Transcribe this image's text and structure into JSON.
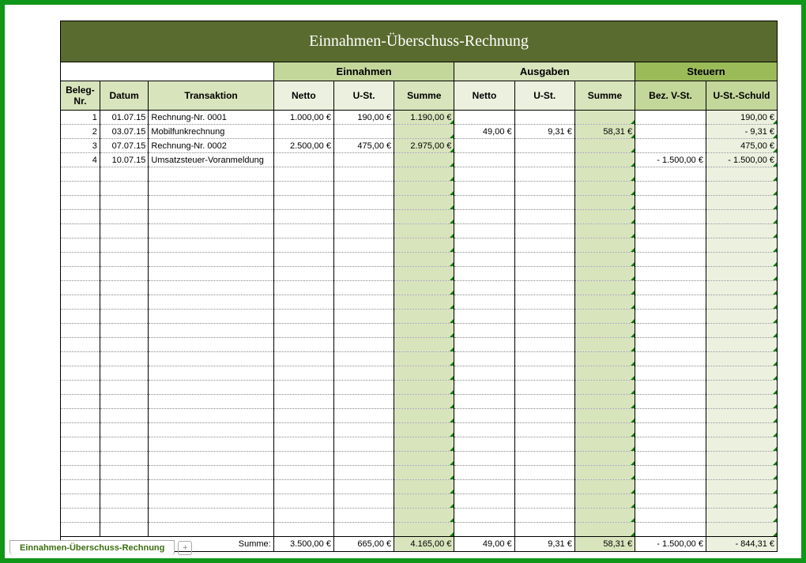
{
  "title": "Einnahmen-Überschuss-Rechnung",
  "groups": {
    "einnahmen": "Einnahmen",
    "ausgaben": "Ausgaben",
    "steuern": "Steuern"
  },
  "headers": {
    "beleg": "Beleg-Nr.",
    "datum": "Datum",
    "transaktion": "Transaktion",
    "netto": "Netto",
    "ust": "U-St.",
    "summe": "Summe",
    "bezvst": "Bez. V-St.",
    "ustschuld": "U-St.-Schuld"
  },
  "columns": {
    "widths_pct": [
      5.1,
      6.3,
      16.2,
      7.8,
      7.8,
      7.8,
      7.8,
      7.8,
      7.8,
      9.2,
      9.2
    ],
    "align": [
      "num",
      "num",
      "txt",
      "num",
      "num",
      "num",
      "num",
      "num",
      "num",
      "num",
      "num"
    ]
  },
  "colors": {
    "frame": "#109618",
    "title_bg": "#5a6b2f",
    "group_einn": "#c4d79b",
    "group_ausg": "#d8e4bc",
    "group_steu": "#9bbb59",
    "h_beleg": "#d8e4bc",
    "h_sub": "#ebf1de",
    "h_sum": "#d8e4bc",
    "h_steu": "#c4d79b",
    "col_summe": "#d8e4bc",
    "col_schuld": "#ebf1de",
    "tick": "#0a7a0a"
  },
  "rows": [
    {
      "nr": "1",
      "datum": "01.07.15",
      "trans": "Rechnung-Nr. 0001",
      "e_netto": "1.000,00 €",
      "e_ust": "190,00 €",
      "e_sum": "1.190,00 €",
      "a_netto": "",
      "a_ust": "",
      "a_sum": "",
      "bezvst": "",
      "schuld": "190,00 €",
      "schuld_neg": false
    },
    {
      "nr": "2",
      "datum": "03.07.15",
      "trans": "Mobilfunkrechnung",
      "e_netto": "",
      "e_ust": "",
      "e_sum": "",
      "a_netto": "49,00 €",
      "a_ust": "9,31 €",
      "a_sum": "58,31 €",
      "bezvst": "",
      "schuld": "9,31 €",
      "schuld_neg": true
    },
    {
      "nr": "3",
      "datum": "07.07.15",
      "trans": "Rechnung-Nr. 0002",
      "e_netto": "2.500,00 €",
      "e_ust": "475,00 €",
      "e_sum": "2.975,00 €",
      "a_netto": "",
      "a_ust": "",
      "a_sum": "",
      "bezvst": "",
      "schuld": "475,00 €",
      "schuld_neg": false
    },
    {
      "nr": "4",
      "datum": "10.07.15",
      "trans": "Umsatzsteuer-Voranmeldung",
      "e_netto": "",
      "e_ust": "",
      "e_sum": "",
      "a_netto": "",
      "a_ust": "",
      "a_sum": "",
      "bezvst": "1.500,00 €",
      "bezvst_neg": true,
      "schuld": "1.500,00 €",
      "schuld_neg": true
    }
  ],
  "empty_rows": 26,
  "totals": {
    "label": "Summe:",
    "e_netto": "3.500,00 €",
    "e_ust": "665,00 €",
    "e_sum": "4.165,00 €",
    "a_netto": "49,00 €",
    "a_ust": "9,31 €",
    "a_sum": "58,31 €",
    "bezvst": "1.500,00 €",
    "bezvst_neg": true,
    "schuld": "844,31 €",
    "schuld_neg": true
  },
  "tab": {
    "name": "Einnahmen-Überschuss-Rechnung",
    "add": "+"
  }
}
